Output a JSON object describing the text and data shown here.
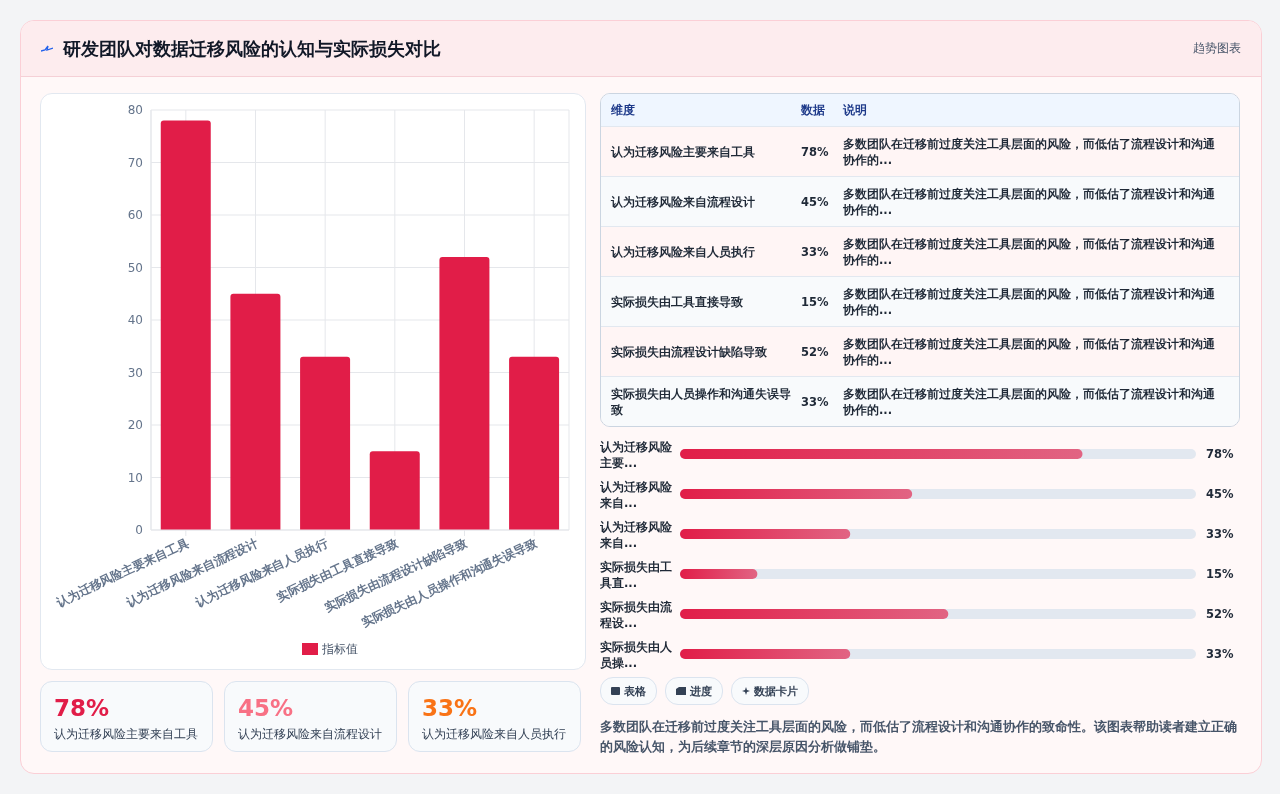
{
  "chart_data": [
    {
      "type": "bar",
      "title": "研发团队对数据迁移风险的认知与实际损失对比",
      "annotations": [
        "趋势图表"
      ],
      "categories": [
        "认为迁移风险主要来自工具",
        "认为迁移风险来自流程设计",
        "认为迁移风险来自人员执行",
        "实际损失由工具直接导致",
        "实际损失由流程设计缺陷导致",
        "实际损失由人员操作和沟通失误导致"
      ],
      "series": [
        {
          "name": "指标值",
          "color": "#e11d48",
          "values": [
            78,
            45,
            33,
            15,
            52,
            33
          ]
        }
      ],
      "ylim": [
        0,
        80
      ],
      "yticks": [
        0,
        10,
        20,
        30,
        40,
        50,
        60,
        70,
        80
      ],
      "grid": true,
      "legend": "bottom"
    },
    {
      "type": "other",
      "annotations": [
        "维度",
        "数据",
        "说明",
        "认为迁移风险主要来自工具",
        "78%",
        "多数团队在迁移前过度关注工具层面的风险，而低估了流程设计和沟通协作的...",
        "认为迁移风险来自流程设计",
        "45%",
        "多数团队在迁移前过度关注工具层面的风险，而低估了流程设计和沟通协作的...",
        "认为迁移风险来自人员执行",
        "33%",
        "多数团队在迁移前过度关注工具层面的风险，而低估了流程设计和沟通协作的...",
        "实际损失由工具直接导致",
        "15%",
        "多数团队在迁移前过度关注工具层面的风险，而低估了流程设计和沟通协作的...",
        "实际损失由流程设计缺陷导致",
        "52%",
        "多数团队在迁移前过度关注工具层面的风险，而低估了流程设计和沟通协作的...",
        "实际损失由人员操作和沟通失误导致",
        "33%",
        "多数团队在迁移前过度关注工具层面的风险，而低估了流程设计和沟通协作的..."
      ]
    },
    {
      "type": "bar",
      "orientation": "horizontal",
      "categories": [
        "认为迁移风险主要...",
        "认为迁移风险来自...",
        "认为迁移风险来自...",
        "实际损失由工具直...",
        "实际损失由流程设...",
        "实际损失由人员操..."
      ],
      "values": [
        78,
        45,
        33,
        15,
        52,
        33
      ],
      "color": "#e11d48",
      "value_labels": [
        "78%",
        "45%",
        "33%",
        "15%",
        "52%",
        "33%"
      ],
      "xlim": [
        0,
        100
      ]
    },
    {
      "type": "other",
      "annotations": [
        "78%",
        "认为迁移风险主要来自工具",
        "45%",
        "认为迁移风险来自流程设计",
        "33%",
        "认为迁移风险来自人员执行"
      ],
      "colors": [
        "#e11d48",
        "#f87185",
        "#f97316"
      ]
    },
    {
      "type": "other",
      "annotations": [
        "表格",
        "进度",
        "数据卡片",
        "多数团队在迁移前过度关注工具层面的风险，而低估了流程设计和沟通协作的致命性。该图表帮助读者建立正确的风险认知，为后续章节的深层原因分析做铺垫。"
      ]
    }
  ]
}
